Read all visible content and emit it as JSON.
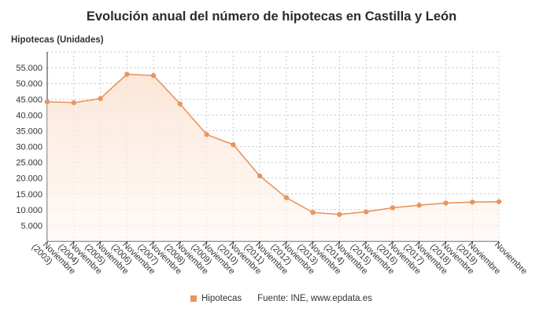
{
  "chart_data": {
    "type": "area",
    "title": "Evolución anual del número de hipotecas en Castilla y León",
    "ylabel": "Hipotecas (Unidades)",
    "xlabel": "",
    "categories": [
      "Noviembre (2003)",
      "Noviembre (2004)",
      "Noviembre (2005)",
      "Noviembre (2006)",
      "Noviembre (2007)",
      "Noviembre (2008)",
      "Noviembre (2009)",
      "Noviembre (2010)",
      "Noviembre (2011)",
      "Noviembre (2012)",
      "Noviembre (2013)",
      "Noviembre (2014)",
      "Noviembre (2015)",
      "Noviembre (2016)",
      "Noviembre (2017)",
      "Noviembre (2018)",
      "Noviembre (2019)",
      "Noviembre"
    ],
    "series": [
      {
        "name": "Hipotecas",
        "values": [
          44200,
          43900,
          45200,
          52900,
          52500,
          43500,
          33800,
          30600,
          20700,
          13800,
          9100,
          8500,
          9300,
          10600,
          11400,
          12100,
          12400,
          12500
        ]
      }
    ],
    "ylim": [
      0,
      60000
    ],
    "yticks": [
      5000,
      10000,
      15000,
      20000,
      25000,
      30000,
      35000,
      40000,
      45000,
      50000,
      55000
    ],
    "ytick_labels": [
      "5.000",
      "10.000",
      "15.000",
      "20.000",
      "25.000",
      "30.000",
      "35.000",
      "40.000",
      "45.000",
      "50.000",
      "55.000"
    ],
    "grid": true,
    "legend_position": "bottom",
    "colors": {
      "line": "#e8955f",
      "fill_top": "#fbe3d3",
      "fill_bottom": "#fff7f2",
      "grid": "#c8c8c8"
    }
  },
  "legend": {
    "label": "Hipotecas"
  },
  "source": "Fuente: INE, www.epdata.es"
}
